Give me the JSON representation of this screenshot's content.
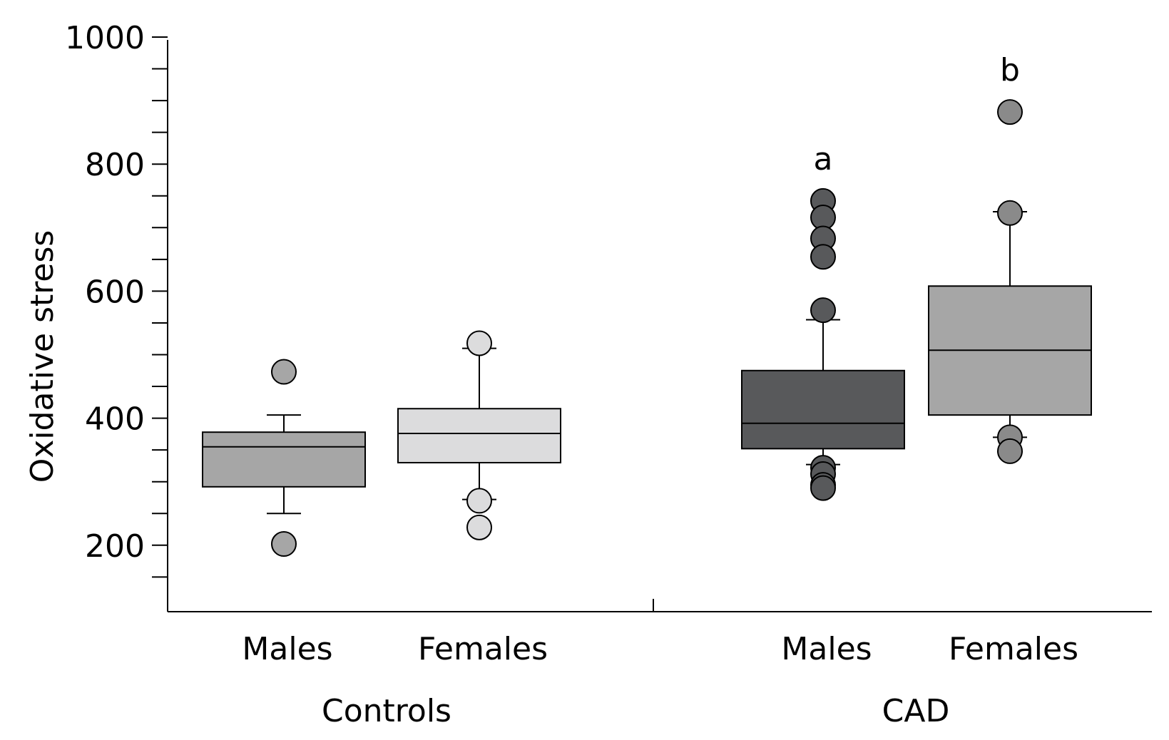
{
  "chart_data": {
    "type": "box",
    "ylabel": "Oxidative stress",
    "ylim": [
      100,
      1000
    ],
    "yticks": [
      200,
      400,
      600,
      800,
      1000
    ],
    "y_minor_step": 50,
    "groups": [
      {
        "label": "Controls",
        "categories": [
          "Males",
          "Females"
        ]
      },
      {
        "label": "CAD",
        "categories": [
          "Males",
          "Females"
        ]
      }
    ],
    "boxes": [
      {
        "group": "Controls",
        "category": "Males",
        "whisker_low": 250,
        "q1": 292,
        "median": 355,
        "q3": 378,
        "whisker_high": 405,
        "outliers": [
          473,
          202
        ],
        "color": "#a6a6a6",
        "annotation": ""
      },
      {
        "group": "Controls",
        "category": "Females",
        "whisker_low": 272,
        "q1": 330,
        "median": 376,
        "q3": 415,
        "whisker_high": 510,
        "outliers": [
          518,
          270,
          228
        ],
        "color": "#dcdcdd",
        "annotation": ""
      },
      {
        "group": "CAD",
        "category": "Males",
        "whisker_low": 327,
        "q1": 352,
        "median": 392,
        "q3": 475,
        "whisker_high": 555,
        "outliers": [
          742,
          716,
          683,
          654,
          570,
          322,
          312,
          295,
          290
        ],
        "color": "#58595b",
        "annotation": "a"
      },
      {
        "group": "CAD",
        "category": "Females",
        "whisker_low": 370,
        "q1": 405,
        "median": 507,
        "q3": 608,
        "whisker_high": 725,
        "outliers": [
          882,
          723,
          370,
          348
        ],
        "color": "#a6a6a6",
        "annotation": "b"
      }
    ],
    "outlier_colors": [
      "#a6a6a6",
      "#dcdcdd",
      "#58595b",
      "#8a8a8a"
    ]
  }
}
